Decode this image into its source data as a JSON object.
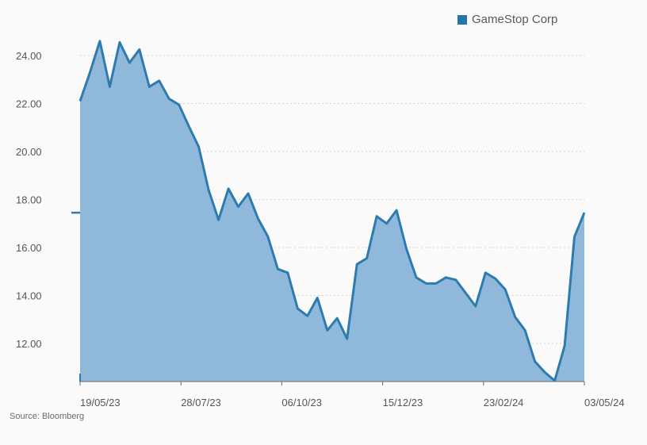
{
  "colors": {
    "line": "#2e7bb0",
    "fill": "#8fb8da",
    "grid": "#d4d4d4",
    "axis": "#6a6a6a",
    "legend_swatch": "#2277aa"
  },
  "source_text": "Source: Bloomberg",
  "chart_data": {
    "type": "area",
    "title": "",
    "xlabel": "",
    "ylabel": "",
    "legend_position": "top-right",
    "grid": true,
    "ylim": [
      10.5,
      25.3
    ],
    "yticks": [
      "24.00",
      "22.00",
      "20.00",
      "18.00",
      "16.00",
      "14.00",
      "12.00"
    ],
    "ytick_values": [
      24,
      22,
      20,
      18,
      16,
      14,
      12
    ],
    "xticks": [
      "19/05/23",
      "28/07/23",
      "06/10/23",
      "15/12/23",
      "23/02/24",
      "03/05/24"
    ],
    "last_value_marker": 17.45,
    "series": [
      {
        "name": "GameStop Corp",
        "values": [
          22.1,
          23.3,
          24.6,
          22.7,
          24.55,
          23.7,
          24.25,
          22.7,
          22.95,
          22.2,
          21.95,
          21.05,
          20.2,
          18.4,
          17.15,
          18.45,
          17.7,
          18.25,
          17.2,
          16.45,
          15.1,
          14.95,
          13.45,
          13.15,
          13.9,
          12.55,
          13.05,
          12.2,
          15.3,
          15.55,
          17.3,
          17.0,
          17.55,
          15.95,
          14.75,
          14.5,
          14.5,
          14.75,
          14.65,
          14.1,
          13.55,
          14.95,
          14.7,
          14.25,
          13.1,
          12.55,
          11.25,
          10.8,
          10.45,
          11.9,
          16.45,
          17.45
        ]
      }
    ]
  }
}
